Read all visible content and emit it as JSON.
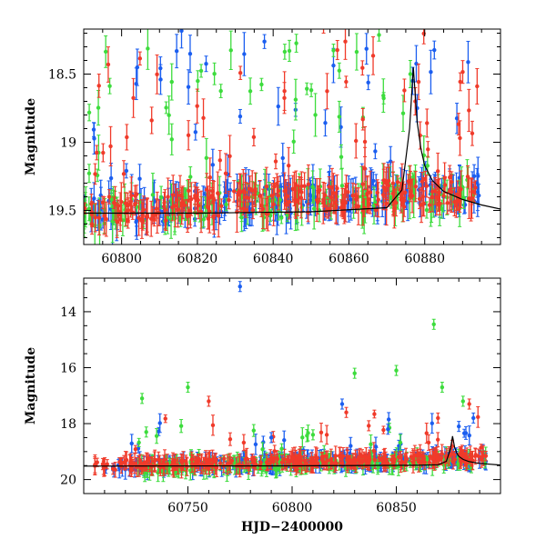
{
  "chart_data": [
    {
      "type": "scatter",
      "title": "",
      "xlabel": "",
      "ylabel": "Magnitude",
      "xlim": [
        60790,
        60900
      ],
      "ylim": [
        19.75,
        18.17
      ],
      "y_inverted": true,
      "grid": false,
      "xticks": [
        60800,
        60820,
        60840,
        60860,
        60880
      ],
      "xtick_labels": [
        "60800",
        "60820",
        "60840",
        "60860",
        "60880"
      ],
      "yticks": [
        18.5,
        19,
        19.5
      ],
      "ytick_labels": [
        "18.5",
        "19",
        "19.5"
      ],
      "series": [
        {
          "color": "#1b5ef0",
          "x_range": [
            60790,
            60895
          ],
          "baseline": 19.5,
          "points": 240,
          "seed": 11
        },
        {
          "color": "#3ddc3d",
          "x_range": [
            60790,
            60893
          ],
          "baseline": 19.52,
          "points": 200,
          "seed": 23
        },
        {
          "color": "#f03a2a",
          "x_range": [
            60790,
            60894
          ],
          "baseline": 19.5,
          "points": 300,
          "seed": 37
        }
      ],
      "flare": [
        {
          "color": "#1b5ef0",
          "x": 60876.8,
          "y": 18.55
        },
        {
          "color": "#3ddc3d",
          "x": 60876.2,
          "y": 18.5
        },
        {
          "color": "#f03a2a",
          "x": 60877.5,
          "y": 18.7
        },
        {
          "color": "#1b5ef0",
          "x": 60878.0,
          "y": 18.75
        },
        {
          "color": "#f03a2a",
          "x": 60878.8,
          "y": 18.95
        }
      ],
      "model_curve": {
        "color": "#000000",
        "x": [
          60790,
          60820,
          60850,
          60870,
          60874,
          60876,
          60877,
          60878,
          60879,
          60880,
          60882,
          60885,
          60890,
          60895,
          60900
        ],
        "y": [
          19.52,
          19.52,
          19.51,
          19.48,
          19.35,
          18.9,
          18.45,
          18.85,
          19.05,
          19.17,
          19.28,
          19.36,
          19.42,
          19.46,
          19.49
        ]
      }
    },
    {
      "type": "scatter",
      "title": "",
      "xlabel": "HJD−2400000",
      "ylabel": "Magnitude",
      "xlim": [
        60700,
        60900
      ],
      "ylim": [
        20.5,
        12.8
      ],
      "y_inverted": true,
      "grid": false,
      "xticks": [
        60750,
        60800,
        60850
      ],
      "xtick_labels": [
        "60750",
        "60800",
        "60850"
      ],
      "yticks": [
        14,
        16,
        18,
        20
      ],
      "ytick_labels": [
        "14",
        "16",
        "18",
        "20"
      ],
      "series": [
        {
          "color": "#1b5ef0",
          "x_range": [
            60710,
            60893
          ],
          "baseline": 19.55,
          "points": 260,
          "seed": 51
        },
        {
          "color": "#3ddc3d",
          "x_range": [
            60725,
            60893
          ],
          "baseline": 19.6,
          "points": 220,
          "seed": 63
        },
        {
          "color": "#f03a2a",
          "x_range": [
            60705,
            60893
          ],
          "baseline": 19.5,
          "points": 320,
          "seed": 77
        }
      ],
      "outliers": [
        {
          "color": "#1b5ef0",
          "x": 60775,
          "y": 13.1
        },
        {
          "color": "#3ddc3d",
          "x": 60868,
          "y": 14.45
        },
        {
          "color": "#3ddc3d",
          "x": 60728,
          "y": 17.1
        },
        {
          "color": "#3ddc3d",
          "x": 60730,
          "y": 18.3
        },
        {
          "color": "#3ddc3d",
          "x": 60750,
          "y": 16.7
        },
        {
          "color": "#f03a2a",
          "x": 60760,
          "y": 17.2
        },
        {
          "color": "#3ddc3d",
          "x": 60830,
          "y": 16.2
        },
        {
          "color": "#3ddc3d",
          "x": 60850,
          "y": 16.1
        },
        {
          "color": "#3ddc3d",
          "x": 60872,
          "y": 16.7
        },
        {
          "color": "#1b5ef0",
          "x": 60824,
          "y": 17.3
        },
        {
          "color": "#f03a2a",
          "x": 60826,
          "y": 17.6
        },
        {
          "color": "#1b5ef0",
          "x": 60880,
          "y": 18.1
        },
        {
          "color": "#3ddc3d",
          "x": 60882,
          "y": 17.2
        },
        {
          "color": "#f03a2a",
          "x": 60885,
          "y": 17.3
        },
        {
          "color": "#1b5ef0",
          "x": 60887,
          "y": 17.8
        },
        {
          "color": "#1b5ef0",
          "x": 60846,
          "y": 18.2
        },
        {
          "color": "#3ddc3d",
          "x": 60810,
          "y": 18.4
        },
        {
          "color": "#f03a2a",
          "x": 60870,
          "y": 17.8
        },
        {
          "color": "#1b5ef0",
          "x": 60790,
          "y": 18.5
        },
        {
          "color": "#3ddc3d",
          "x": 60795,
          "y": 18.9
        }
      ],
      "model_curve": {
        "color": "#000000",
        "x": [
          60700,
          60800,
          60860,
          60870,
          60874,
          60876,
          60877,
          60878,
          60879,
          60880,
          60882,
          60885,
          60890,
          60900
        ],
        "y": [
          19.52,
          19.51,
          19.49,
          19.47,
          19.35,
          18.9,
          18.45,
          18.85,
          19.05,
          19.17,
          19.28,
          19.36,
          19.42,
          19.48
        ]
      }
    }
  ]
}
